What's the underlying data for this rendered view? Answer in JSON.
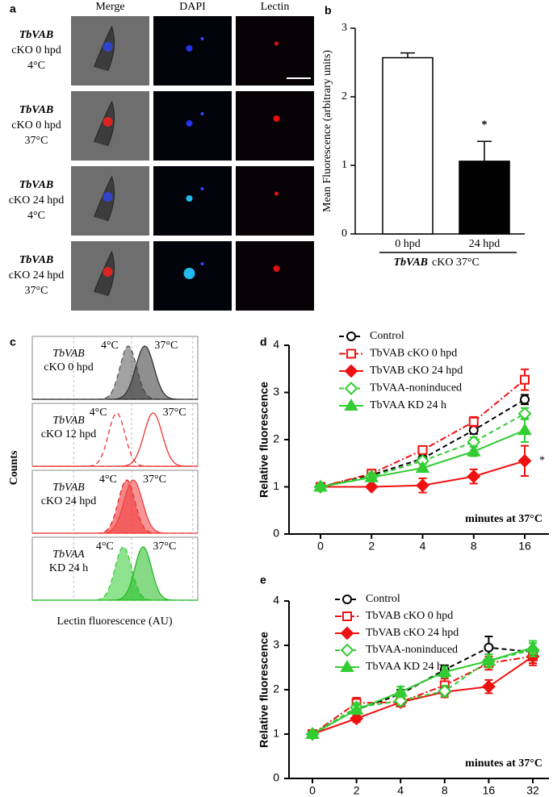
{
  "chart_data": [
    {
      "panel": "a",
      "type": "micrograph",
      "columns": [
        "Merge",
        "DAPI",
        "Lectin"
      ],
      "column_colors": [
        "#000000",
        "#2233dd",
        "#e01010"
      ],
      "rows": [
        [
          "TbVAB",
          "cKO 0 hpd",
          "4°C"
        ],
        [
          "TbVAB",
          "cKO 0 hpd",
          "37°C"
        ],
        [
          "TbVAB",
          "cKO 24 hpd",
          "4°C"
        ],
        [
          "TbVAB",
          "cKO 24 hpd",
          "37°C"
        ]
      ]
    },
    {
      "panel": "b",
      "type": "bar",
      "categories": [
        "0 hpd",
        "24 hpd"
      ],
      "values": [
        2.57,
        1.06
      ],
      "errors": [
        0.07,
        0.29
      ],
      "colors": [
        "#ffffff",
        "#000000"
      ],
      "ylim": [
        0,
        3
      ],
      "yticks": [
        0,
        1,
        2,
        3
      ],
      "y_label": "Mean Fluorescence (arbitrary units)",
      "x_label": [
        "TbVAB",
        "cKO 37°C"
      ],
      "annotation": "*"
    },
    {
      "panel": "c",
      "type": "flow",
      "y_label": "Counts",
      "x_label": "Lectin fluorescence (AU)",
      "rows": [
        {
          "label": [
            "TbVAB",
            "cKO 0 hpd"
          ],
          "series": [
            {
              "name": "4°C",
              "peak": 0.58,
              "width": 0.05,
              "color": "#555555",
              "filled": true,
              "dash": "dashed"
            },
            {
              "name": "37°C",
              "peak": 0.68,
              "width": 0.055,
              "color": "#333333",
              "filled": true,
              "dash": "solid"
            }
          ]
        },
        {
          "label": [
            "TbVAB",
            "cKO 12 hpd"
          ],
          "series": [
            {
              "name": "4°C",
              "peak": 0.51,
              "width": 0.05,
              "color": "#ee3333",
              "filled": false,
              "dash": "dashed"
            },
            {
              "name": "37°C",
              "peak": 0.73,
              "width": 0.055,
              "color": "#ee3333",
              "filled": false,
              "dash": "solid"
            }
          ]
        },
        {
          "label": [
            "TbVAB",
            "cKO 24 hpd"
          ],
          "series": [
            {
              "name": "4°C",
              "peak": 0.57,
              "width": 0.05,
              "color": "#ee2222",
              "filled": true,
              "dash": "dashed"
            },
            {
              "name": "37°C",
              "peak": 0.61,
              "width": 0.055,
              "color": "#f04040",
              "filled": true,
              "dash": "solid"
            }
          ]
        },
        {
          "label": [
            "TbVAA",
            "KD 24 h"
          ],
          "series": [
            {
              "name": "4°C",
              "peak": 0.55,
              "width": 0.05,
              "color": "#33cc33",
              "filled": true,
              "dash": "dashed"
            },
            {
              "name": "37°C",
              "peak": 0.67,
              "width": 0.05,
              "color": "#22bb22",
              "filled": true,
              "dash": "solid"
            }
          ]
        }
      ]
    },
    {
      "panel": "d",
      "type": "line",
      "categories": [
        "0",
        "2",
        "4",
        "8",
        "16"
      ],
      "ylim": [
        0,
        4
      ],
      "yticks": [
        0,
        1,
        2,
        3,
        4
      ],
      "y_label": "Relative fluorescence",
      "x_label": "minutes at 37°C",
      "annotation": "*",
      "series": [
        {
          "name": "Control",
          "color": "#000000",
          "dash": "dashed",
          "marker": "circle",
          "filled": false,
          "values": [
            1,
            1.25,
            1.6,
            2.2,
            2.85
          ],
          "errors": [
            0.05,
            0.05,
            0.05,
            0.08,
            0.1
          ]
        },
        {
          "name": "TbVAB cKO 0 hpd",
          "color": "#ee1111",
          "dash": "dashdot",
          "marker": "square",
          "filled": false,
          "values": [
            1,
            1.28,
            1.78,
            2.38,
            3.27
          ],
          "errors": [
            0.05,
            0.05,
            0.07,
            0.1,
            0.22
          ]
        },
        {
          "name": "TbVAB cKO 24 hpd",
          "color": "#ee1111",
          "dash": "solid",
          "marker": "diamond",
          "filled": true,
          "values": [
            1,
            1.0,
            1.03,
            1.22,
            1.55
          ],
          "errors": [
            0.05,
            0.04,
            0.15,
            0.15,
            0.32
          ]
        },
        {
          "name": "TbVAA-noninduced",
          "color": "#33cc33",
          "dash": "dashed",
          "marker": "diamond",
          "filled": false,
          "values": [
            1,
            1.22,
            1.55,
            1.95,
            2.55
          ],
          "errors": [
            0.05,
            0.05,
            0.07,
            0.1,
            0.12
          ]
        },
        {
          "name": "TbVAA KD 24 h",
          "color": "#33cc33",
          "dash": "solid",
          "marker": "triangle",
          "filled": true,
          "values": [
            1,
            1.2,
            1.4,
            1.75,
            2.2
          ],
          "errors": [
            0.05,
            0.06,
            0.08,
            0.1,
            0.25
          ]
        }
      ]
    },
    {
      "panel": "e",
      "type": "line",
      "categories": [
        "0",
        "2",
        "4",
        "8",
        "16",
        "32"
      ],
      "ylim": [
        0,
        4
      ],
      "yticks": [
        0,
        1,
        2,
        3,
        4
      ],
      "y_label": "Relative fluorescence",
      "x_label": "minutes at 37°C",
      "series": [
        {
          "name": "Control",
          "color": "#000000",
          "dash": "dashed",
          "marker": "circle",
          "filled": false,
          "values": [
            1,
            1.55,
            1.9,
            2.45,
            2.95,
            2.85
          ],
          "errors": [
            0.03,
            0.1,
            0.1,
            0.1,
            0.25,
            0.1
          ]
        },
        {
          "name": "TbVAB cKO 0 hpd",
          "color": "#ee1111",
          "dash": "dashdot",
          "marker": "square",
          "filled": false,
          "values": [
            1,
            1.7,
            1.72,
            2.1,
            2.6,
            2.75
          ],
          "errors": [
            0.03,
            0.12,
            0.1,
            0.15,
            0.15,
            0.15
          ]
        },
        {
          "name": "TbVAB cKO 24 hpd",
          "color": "#ee1111",
          "dash": "solid",
          "marker": "diamond",
          "filled": true,
          "values": [
            1,
            1.35,
            1.72,
            1.95,
            2.07,
            2.75
          ],
          "errors": [
            0.03,
            0.08,
            0.08,
            0.12,
            0.15,
            0.2
          ]
        },
        {
          "name": "TbVAA-noninduced",
          "color": "#33cc33",
          "dash": "dashed",
          "marker": "diamond",
          "filled": false,
          "values": [
            1,
            1.6,
            1.75,
            1.97,
            2.65,
            2.9
          ],
          "errors": [
            0.03,
            0.1,
            0.1,
            0.12,
            0.15,
            0.15
          ]
        },
        {
          "name": "TbVAA KD 24 h",
          "color": "#33cc33",
          "dash": "solid",
          "marker": "triangle",
          "filled": true,
          "values": [
            1,
            1.55,
            1.95,
            2.4,
            2.65,
            2.95
          ],
          "errors": [
            0.03,
            0.1,
            0.12,
            0.12,
            0.15,
            0.15
          ]
        }
      ]
    }
  ]
}
